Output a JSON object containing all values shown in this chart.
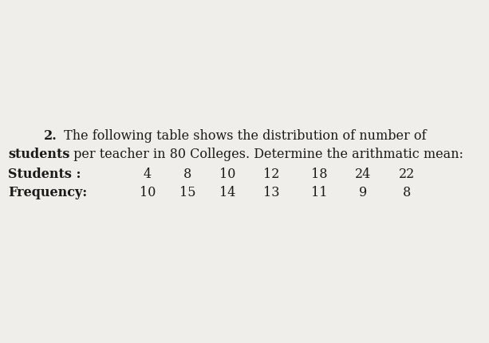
{
  "title_part1": "2.",
  "title_part2": " The following table shows the distribution of number of",
  "title_line2_bold": "students",
  "title_line2_rest": " per teacher in 80 Colleges. Determine the arithmatic mean:",
  "row1_label": "Students :",
  "row2_label": "Frequency:",
  "students": [
    4,
    8,
    10,
    12,
    18,
    24,
    22
  ],
  "frequency": [
    10,
    15,
    14,
    13,
    11,
    9,
    8
  ],
  "bg_color": "#f0eeea",
  "text_color": "#1a1a1a",
  "font_size_title": 11.5,
  "font_size_data": 11.5,
  "fig_width": 6.13,
  "fig_height": 4.3,
  "dpi": 100
}
